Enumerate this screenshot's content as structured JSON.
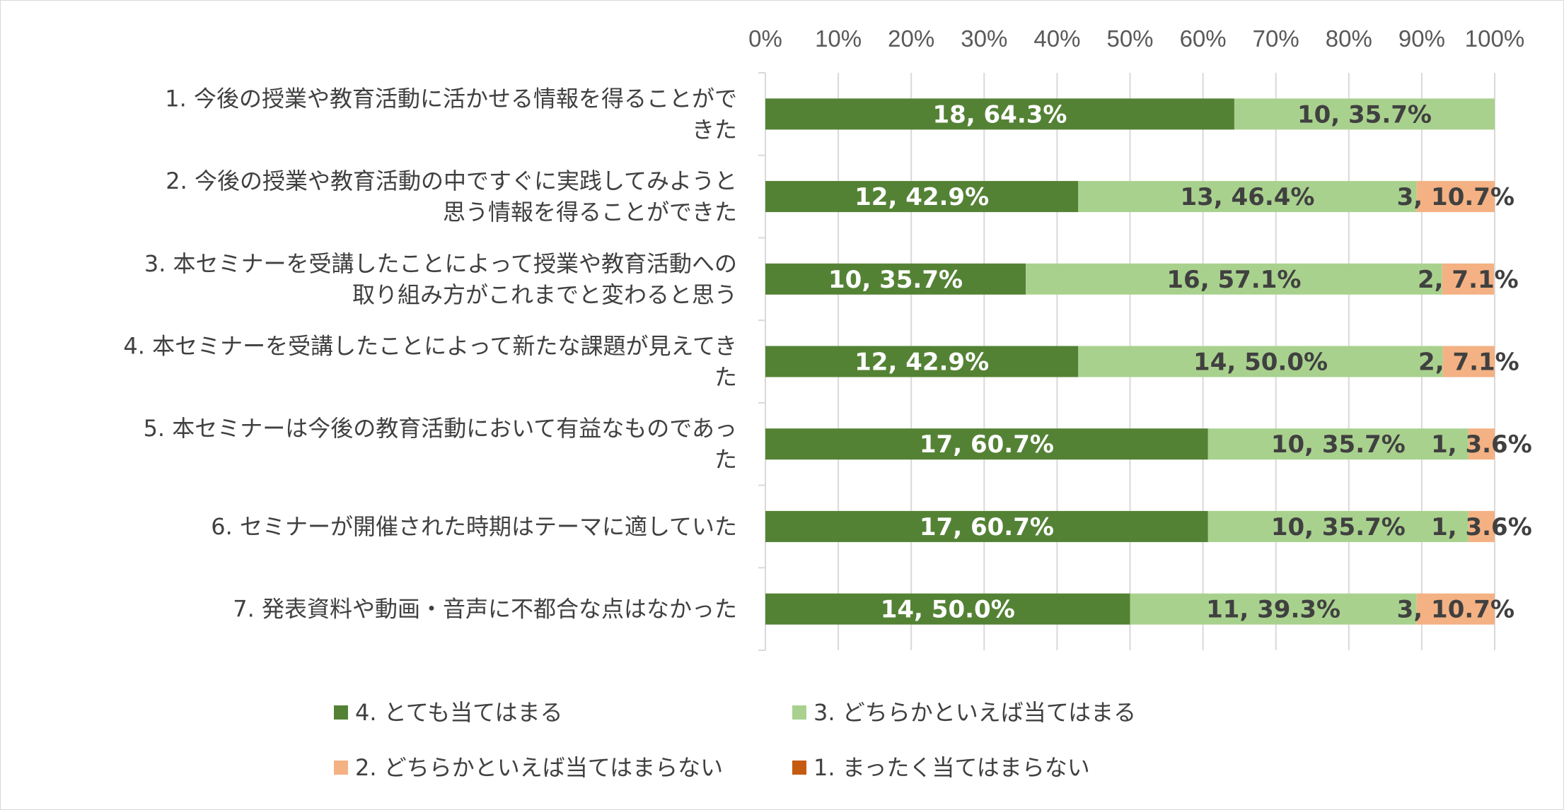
{
  "chart_data": {
    "type": "bar",
    "orientation": "horizontal",
    "stacked": "100%",
    "title": "",
    "xlabel": "",
    "ylabel": "",
    "xlim": [
      0,
      100
    ],
    "x_ticks": [
      "0%",
      "10%",
      "20%",
      "30%",
      "40%",
      "50%",
      "60%",
      "70%",
      "80%",
      "90%",
      "100%"
    ],
    "grid": true,
    "legend_position": "bottom",
    "categories": [
      [
        "1. 今後の授業や教育活動に活かせる情報を得ることがで",
        "きた"
      ],
      [
        "2. 今後の授業や教育活動の中ですぐに実践してみようと",
        "思う情報を得ることができた"
      ],
      [
        "3. 本セミナーを受講したことによって授業や教育活動への",
        "取り組み方がこれまでと変わると思う"
      ],
      [
        "4. 本セミナーを受講したことによって新たな課題が見えてき",
        "た"
      ],
      [
        "5. 本セミナーは今後の教育活動において有益なものであっ",
        "た"
      ],
      [
        "6. セミナーが開催された時期はテーマに適していた"
      ],
      [
        "7. 発表資料や動画・音声に不都合な点はなかった"
      ]
    ],
    "series": [
      {
        "name": "4. とても当てはまる",
        "color": "#548235",
        "label_color": "#ffffff",
        "counts": [
          18,
          12,
          10,
          12,
          17,
          17,
          14
        ],
        "values": [
          64.3,
          42.9,
          35.7,
          42.9,
          60.7,
          60.7,
          50.0
        ],
        "labels": [
          "18, 64.3%",
          "12, 42.9%",
          "10, 35.7%",
          "12, 42.9%",
          "17, 60.7%",
          "17, 60.7%",
          "14, 50.0%"
        ]
      },
      {
        "name": "3. どちらかといえば当てはまる",
        "color": "#a9d18e",
        "label_color": "#404040",
        "counts": [
          10,
          13,
          16,
          14,
          10,
          10,
          11
        ],
        "values": [
          35.7,
          46.4,
          57.1,
          50.0,
          35.7,
          35.7,
          39.3
        ],
        "labels": [
          "10, 35.7%",
          "13, 46.4%",
          "16, 57.1%",
          "14, 50.0%",
          "10, 35.7%",
          "10, 35.7%",
          "11, 39.3%"
        ]
      },
      {
        "name": "2. どちらかといえば当てはまらない",
        "color": "#f4b183",
        "label_color": "#404040",
        "counts": [
          0,
          3,
          2,
          2,
          1,
          1,
          3
        ],
        "values": [
          0,
          10.7,
          7.1,
          7.1,
          3.6,
          3.6,
          10.7
        ],
        "labels": [
          "",
          "3, 10.7%",
          "2, 7.1%",
          "2, 7.1%",
          "1, 3.6%",
          "1, 3.6%",
          "3, 10.7%"
        ]
      },
      {
        "name": "1. まったく当てはまらない",
        "color": "#c55a11",
        "label_color": "#404040",
        "counts": [
          0,
          0,
          0,
          0,
          0,
          0,
          0
        ],
        "values": [
          0,
          0,
          0,
          0,
          0,
          0,
          0
        ],
        "labels": [
          "",
          "",
          "",
          "",
          "",
          "",
          ""
        ]
      }
    ]
  }
}
